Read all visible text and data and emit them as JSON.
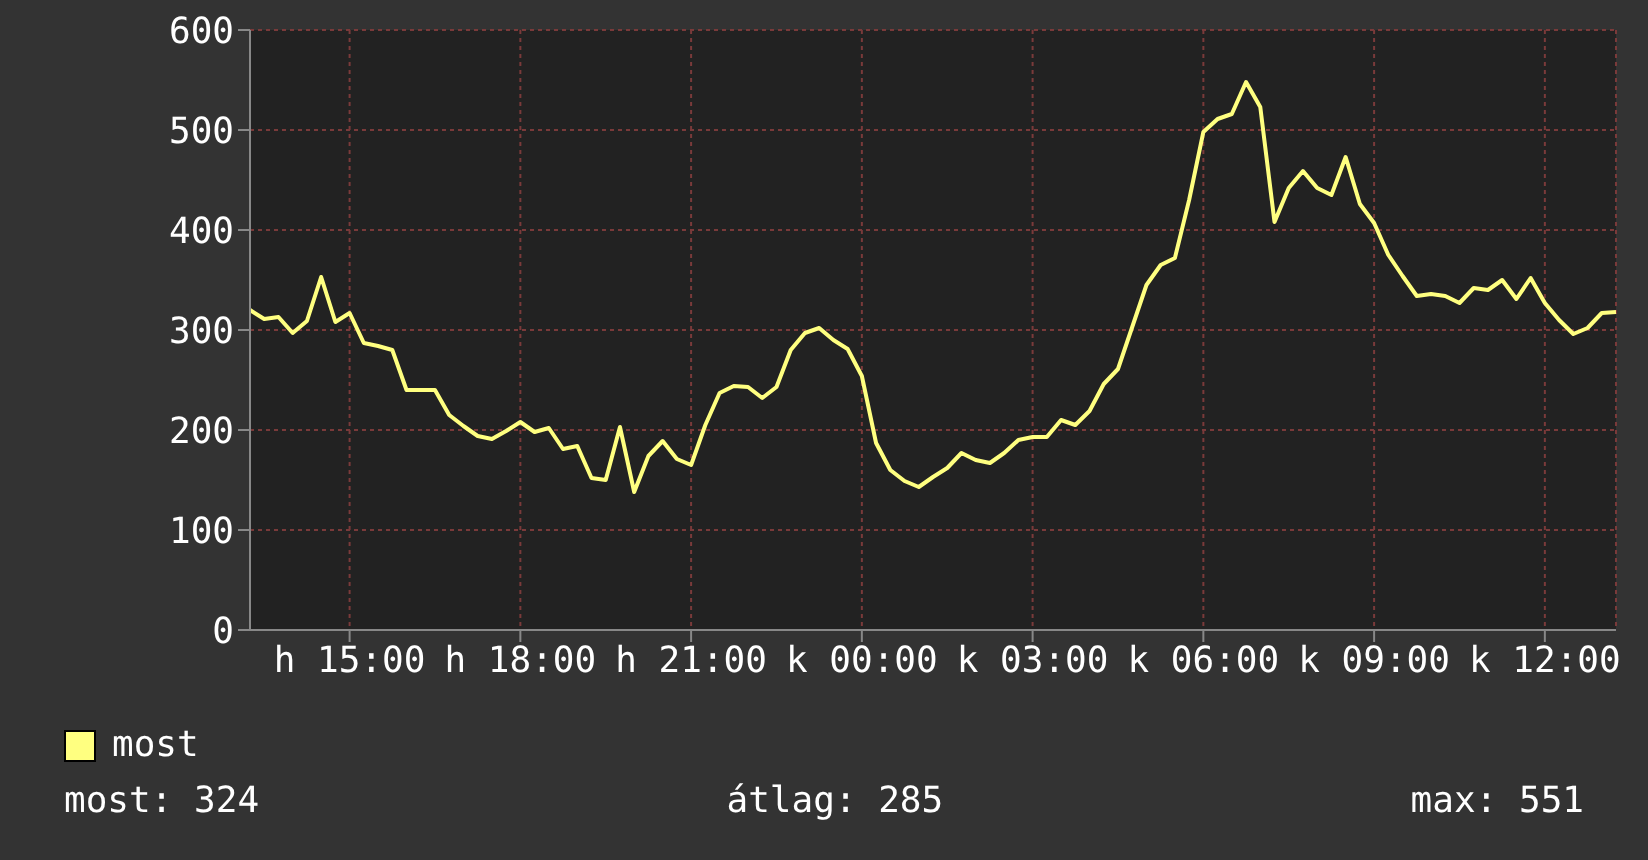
{
  "chart_data": {
    "type": "line",
    "categories": [
      null,
      null,
      null,
      null,
      null,
      null,
      null,
      "h 15:00",
      null,
      null,
      null,
      null,
      null,
      null,
      null,
      null,
      null,
      null,
      null,
      "h 18:00",
      null,
      null,
      null,
      null,
      null,
      null,
      null,
      null,
      null,
      null,
      null,
      "h 21:00",
      null,
      null,
      null,
      null,
      null,
      null,
      null,
      null,
      null,
      null,
      null,
      "k 00:00",
      null,
      null,
      null,
      null,
      null,
      null,
      null,
      null,
      null,
      null,
      null,
      "k 03:00",
      null,
      null,
      null,
      null,
      null,
      null,
      null,
      null,
      null,
      null,
      null,
      "k 06:00",
      null,
      null,
      null,
      null,
      null,
      null,
      null,
      null,
      null,
      null,
      null,
      "k 09:00",
      null,
      null,
      null,
      null,
      null,
      null,
      null,
      null,
      null,
      null,
      null,
      "k 12:00",
      null,
      null,
      null,
      null,
      null
    ],
    "series": [
      {
        "name": "most",
        "color": "#ffff80",
        "values": [
          320,
          311,
          313,
          297,
          309,
          353,
          308,
          317,
          287,
          284,
          280,
          240,
          240,
          240,
          215,
          204,
          194,
          191,
          199,
          208,
          198,
          202,
          181,
          184,
          152,
          150,
          203,
          138,
          174,
          189,
          171,
          165,
          205,
          237,
          244,
          243,
          232,
          243,
          280,
          297,
          302,
          290,
          281,
          254,
          187,
          160,
          149,
          143,
          153,
          162,
          177,
          170,
          167,
          177,
          190,
          193,
          193,
          210,
          205,
          219,
          246,
          261,
          303,
          345,
          365,
          372,
          430,
          498,
          511,
          516,
          548,
          523,
          408,
          442,
          459,
          442,
          435,
          473,
          426,
          407,
          375,
          354,
          334,
          336,
          334,
          327,
          342,
          340,
          350,
          331,
          352,
          327,
          310,
          296,
          302,
          317,
          318
        ]
      }
    ],
    "ylim": [
      0,
      600
    ],
    "yticks": [
      0,
      100,
      200,
      300,
      400,
      500,
      600
    ],
    "grid": true,
    "legend": "bottom left",
    "marker": "none",
    "line_style": "solid",
    "annotations": [
      "most: 324",
      "átlag: 285",
      "max: 551"
    ]
  }
}
